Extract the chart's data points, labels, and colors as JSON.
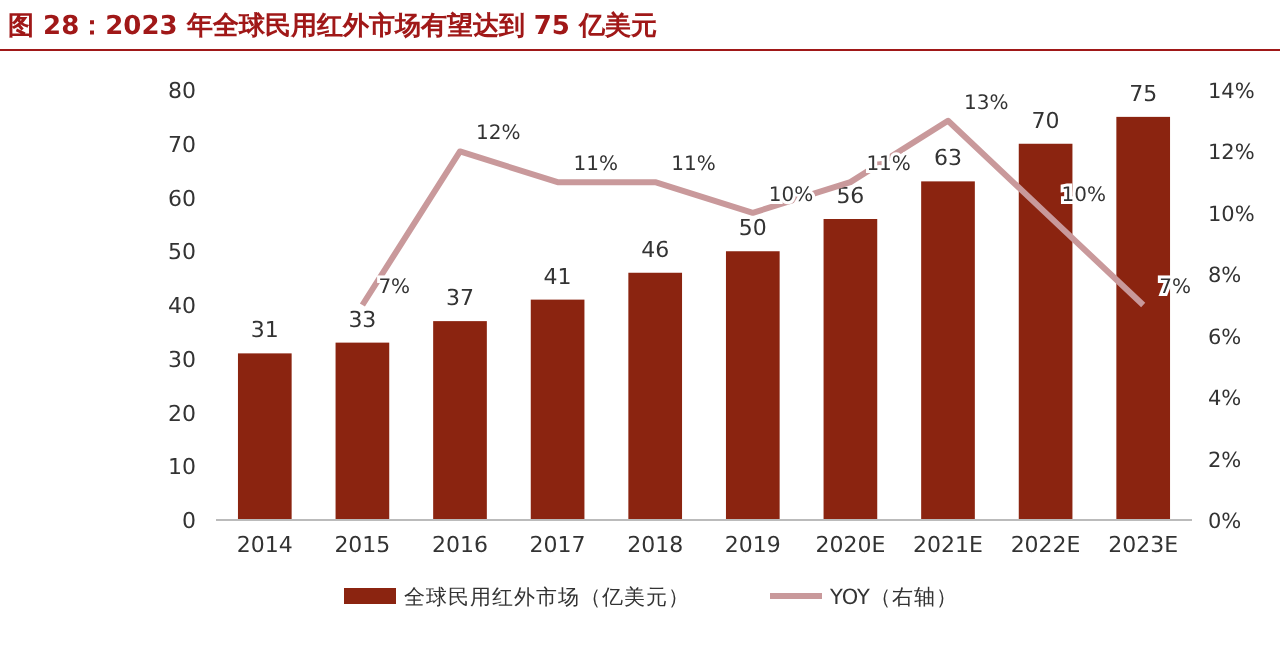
{
  "chart_data": {
    "type": "bar",
    "title": "图 28：2023 年全球民用红外市场有望达到 75 亿美元",
    "categories": [
      "2014",
      "2015",
      "2016",
      "2017",
      "2018",
      "2019",
      "2020E",
      "2021E",
      "2022E",
      "2023E"
    ],
    "series": [
      {
        "name": "全球民用红外市场（亿美元）",
        "color": "#8b2410",
        "values": [
          31,
          33,
          37,
          41,
          46,
          50,
          56,
          63,
          70,
          75
        ]
      },
      {
        "name": "YOY（右轴）",
        "type": "line",
        "axis": "y2",
        "color": "#c9999b",
        "values": [
          null,
          7,
          12,
          11,
          11,
          10,
          11,
          13,
          10,
          7
        ],
        "value_labels": [
          null,
          "7%",
          "12%",
          "11%",
          "11%",
          "10%",
          "11%",
          "13%",
          "10%",
          "7%"
        ]
      }
    ],
    "ylim": [
      0,
      80
    ],
    "yticks": [
      0,
      10,
      20,
      30,
      40,
      50,
      60,
      70,
      80
    ],
    "y2lim": [
      0,
      14
    ],
    "y2ticks": [
      {
        "value": 0,
        "label": "0%"
      },
      {
        "value": 2,
        "label": "2%"
      },
      {
        "value": 4,
        "label": "4%"
      },
      {
        "value": 6,
        "label": "6%"
      },
      {
        "value": 8,
        "label": "8%"
      },
      {
        "value": 10,
        "label": "10%"
      },
      {
        "value": 12,
        "label": "12%"
      },
      {
        "value": 14,
        "label": "14%"
      }
    ],
    "data_labels": true,
    "legend": "bottom"
  }
}
